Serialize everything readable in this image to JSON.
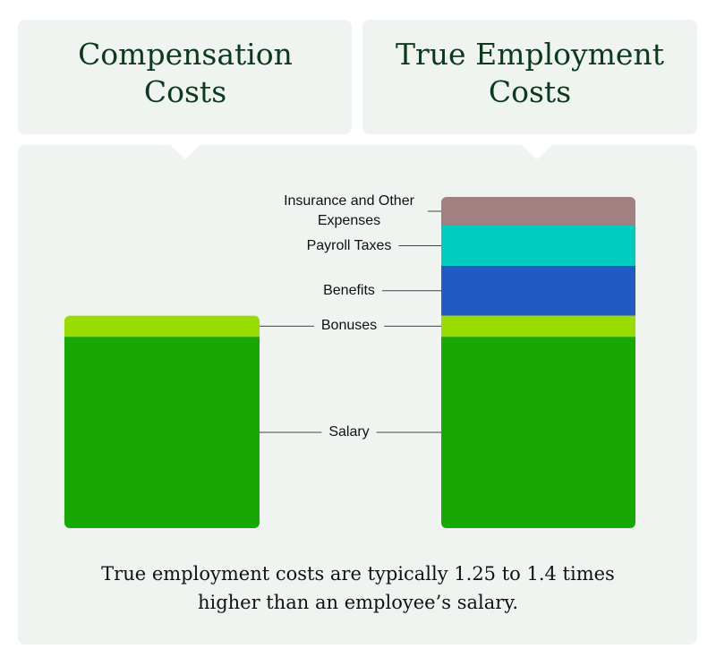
{
  "chart_data": {
    "type": "stacked-bar",
    "categories": [
      "Compensation Costs",
      "True Employment Costs"
    ],
    "series": [
      {
        "name": "Salary",
        "color": "#17a804",
        "values": [
          100,
          100
        ]
      },
      {
        "name": "Bonuses",
        "color": "#99dd00",
        "values": [
          11,
          11
        ]
      },
      {
        "name": "Benefits",
        "color": "#205bc4",
        "values": [
          null,
          26
        ]
      },
      {
        "name": "Payroll Taxes",
        "color": "#00ccc0",
        "values": [
          null,
          21
        ]
      },
      {
        "name": "Insurance and Other Expenses",
        "color": "#a08080",
        "values": [
          null,
          15
        ]
      }
    ],
    "ylim": [
      0,
      180
    ],
    "note": "True employment costs are typically 1.25 to 1.4 times higher than an employee’s salary."
  }
}
